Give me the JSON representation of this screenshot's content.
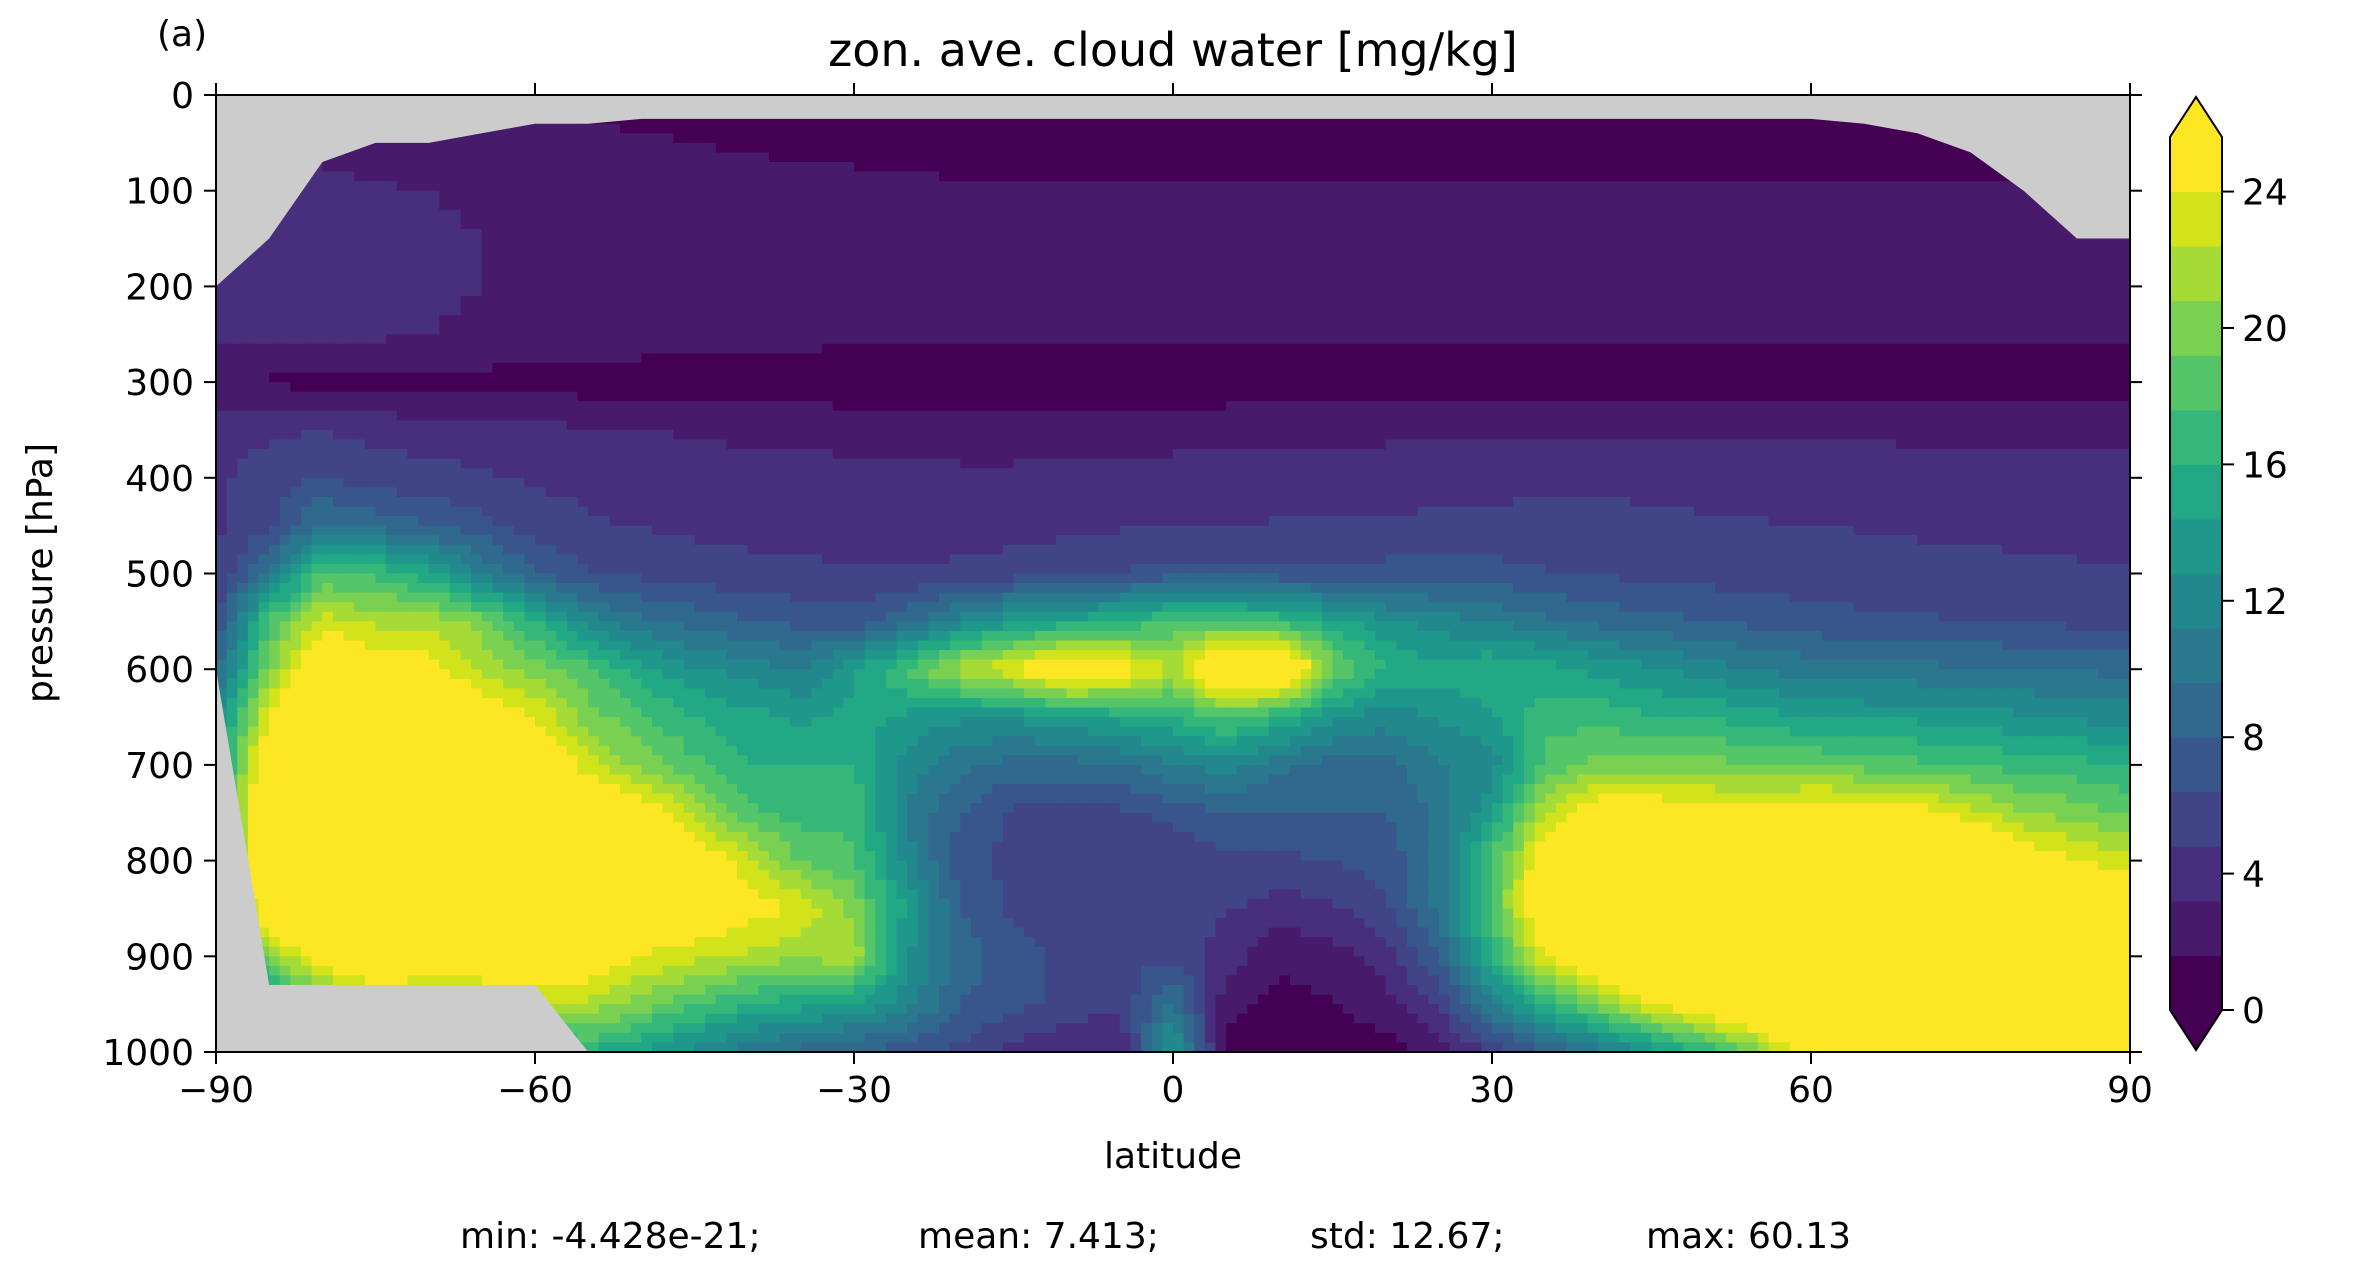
{
  "panel_label": "(a)",
  "stats_line": {
    "min": "min: -4.428e-21;",
    "mean": "mean: 7.413;",
    "std": "std: 12.67;",
    "max": "max: 60.13"
  },
  "colors": {
    "missing": "#cccccc",
    "levels": [
      "#440154",
      "#481a6c",
      "#472f7d",
      "#414487",
      "#39568c",
      "#31688e",
      "#2a788e",
      "#23888e",
      "#1f988b",
      "#22a884",
      "#35b779",
      "#54c568",
      "#7ad151",
      "#a5db36",
      "#d2e21b",
      "#fde725"
    ],
    "under": "#440154",
    "over": "#fde725"
  },
  "chart_data": {
    "type": "heatmap",
    "subtype": "filled-contour",
    "title": "zon. ave. cloud water [mg/kg]",
    "xlabel": "latitude",
    "ylabel": "pressure [hPa]",
    "xlim": [
      -90,
      90
    ],
    "ylim": [
      1000,
      0
    ],
    "y_inverted": true,
    "xticks": [
      -90,
      -60,
      -30,
      0,
      30,
      60,
      90
    ],
    "xtick_labels": [
      "−90",
      "−60",
      "−30",
      "0",
      "30",
      "60",
      "90"
    ],
    "yticks": [
      0,
      100,
      200,
      300,
      400,
      500,
      600,
      700,
      800,
      900,
      1000
    ],
    "ytick_labels": [
      "0",
      "100",
      "200",
      "300",
      "400",
      "500",
      "600",
      "700",
      "800",
      "900",
      "1000"
    ],
    "colorbar": {
      "levels": [
        0,
        1.6,
        3.2,
        4.8,
        6.4,
        8,
        9.6,
        11.2,
        12.8,
        14.4,
        16,
        17.6,
        19.2,
        20.8,
        22.4,
        24,
        25.6
      ],
      "ticks": [
        0,
        4,
        8,
        12,
        16,
        20,
        24
      ],
      "tick_labels": [
        "0",
        "4",
        "8",
        "12",
        "16",
        "20",
        "24"
      ],
      "extend": "both",
      "placement": "right"
    },
    "grid": false,
    "legend": "none",
    "fields": {
      "lat": [
        -90,
        -85,
        -80,
        -75,
        -70,
        -65,
        -60,
        -55,
        -50,
        -45,
        -40,
        -35,
        -30,
        -25,
        -20,
        -15,
        -10,
        -5,
        0,
        5,
        10,
        15,
        20,
        25,
        30,
        35,
        40,
        45,
        50,
        55,
        60,
        65,
        70,
        75,
        80,
        85,
        90
      ],
      "pressure_hPa": [
        0,
        50,
        100,
        150,
        200,
        250,
        300,
        350,
        400,
        450,
        500,
        550,
        600,
        650,
        700,
        750,
        800,
        850,
        900,
        950,
        1000
      ],
      "surface_pressure_hPa": [
        600,
        930,
        930,
        930,
        930,
        930,
        930,
        1000,
        1000,
        1000,
        1000,
        1000,
        1000,
        1000,
        1000,
        1000,
        1000,
        1000,
        1000,
        1000,
        1000,
        1000,
        1000,
        1000,
        1000,
        1000,
        1000,
        1000,
        1000,
        1000,
        1000,
        1000,
        1000,
        1000,
        1000,
        1000,
        1000
      ],
      "model_top_hPa": [
        200,
        150,
        70,
        50,
        50,
        40,
        30,
        30,
        25,
        25,
        25,
        25,
        25,
        25,
        25,
        25,
        25,
        25,
        25,
        25,
        25,
        25,
        25,
        25,
        25,
        25,
        25,
        25,
        25,
        25,
        25,
        30,
        40,
        60,
        100,
        150,
        150
      ],
      "cloud_water_mg_per_kg": [
        [
          2.2,
          3.5,
          3.7,
          3.8,
          3.8,
          3.6,
          2.1,
          4.0,
          4.5,
          4.5,
          5.0,
          6.0,
          9.0,
          12.0,
          13.0,
          13.0,
          13.0,
          12.0,
          8.0,
          3.0,
          1.0
        ],
        [
          2.2,
          3.2,
          3.4,
          3.6,
          3.7,
          3.7,
          1.3,
          4.5,
          5.6,
          6.0,
          10.0,
          18.0,
          20.0,
          24.0,
          28.0,
          30.0,
          30.0,
          29.0,
          20.0,
          14.0,
          2.0
        ],
        [
          2.0,
          3.0,
          3.4,
          3.5,
          3.6,
          3.6,
          1.2,
          4.8,
          6.5,
          10.0,
          18.0,
          23.0,
          28.0,
          32.0,
          33.0,
          33.0,
          32.0,
          30.0,
          26.0,
          18.0,
          3.0
        ],
        [
          1.9,
          2.8,
          3.3,
          3.4,
          3.5,
          3.5,
          1.1,
          4.2,
          5.5,
          9.0,
          17.0,
          22.0,
          25.0,
          30.0,
          32.0,
          32.0,
          32.0,
          30.0,
          28.0,
          21.0,
          7.0
        ],
        [
          1.7,
          2.6,
          3.2,
          3.3,
          3.3,
          3.2,
          1.0,
          4.0,
          5.5,
          8.0,
          15.0,
          22.0,
          25.0,
          30.0,
          32.0,
          32.0,
          32.0,
          30.0,
          27.0,
          20.0,
          9.0
        ],
        [
          1.5,
          2.4,
          3.1,
          3.2,
          3.2,
          3.1,
          1.0,
          3.8,
          5.0,
          7.0,
          11.0,
          20.0,
          22.0,
          26.0,
          30.0,
          30.0,
          30.0,
          28.0,
          26.0,
          22.0,
          12.0
        ],
        [
          1.3,
          2.2,
          3.0,
          3.1,
          3.0,
          2.9,
          0.9,
          3.6,
          4.6,
          5.5,
          8.0,
          16.0,
          20.0,
          24.0,
          28.0,
          30.0,
          30.0,
          28.0,
          26.0,
          22.0,
          14.0
        ],
        [
          1.1,
          2.0,
          2.8,
          3.0,
          2.8,
          2.7,
          0.8,
          3.4,
          4.4,
          5.0,
          6.5,
          12.0,
          18.0,
          20.0,
          23.0,
          28.0,
          30.0,
          28.0,
          26.0,
          22.0,
          16.0
        ],
        [
          0.9,
          1.8,
          2.6,
          2.9,
          2.6,
          2.5,
          0.7,
          3.2,
          4.2,
          4.7,
          6.0,
          10.0,
          15.0,
          18.0,
          20.0,
          26.0,
          28.0,
          27.0,
          24.0,
          20.0,
          14.0
        ],
        [
          0.8,
          1.6,
          2.4,
          2.8,
          2.4,
          2.3,
          0.7,
          3.0,
          4.0,
          4.5,
          5.5,
          9.0,
          13.0,
          16.0,
          18.0,
          22.0,
          26.0,
          26.0,
          23.0,
          18.0,
          12.0
        ],
        [
          0.7,
          1.4,
          2.2,
          2.7,
          2.3,
          2.2,
          0.6,
          2.8,
          3.9,
          4.3,
          5.3,
          8.0,
          12.0,
          15.0,
          16.0,
          18.0,
          23.0,
          25.0,
          22.0,
          16.0,
          10.0
        ],
        [
          0.6,
          1.3,
          2.1,
          2.6,
          2.2,
          2.1,
          0.6,
          2.7,
          3.8,
          4.2,
          5.1,
          7.5,
          11.0,
          14.0,
          16.0,
          17.0,
          19.0,
          24.0,
          21.0,
          15.0,
          9.0
        ],
        [
          0.5,
          1.2,
          2.0,
          2.5,
          2.1,
          2.0,
          0.5,
          2.6,
          3.7,
          4.1,
          5.0,
          7.0,
          14.0,
          15.0,
          16.0,
          17.0,
          18.0,
          20.0,
          22.0,
          14.0,
          8.0
        ],
        [
          0.5,
          1.1,
          1.9,
          2.4,
          2.0,
          1.9,
          0.5,
          2.5,
          3.6,
          4.0,
          5.0,
          9.0,
          18.0,
          14.0,
          12.0,
          11.0,
          12.0,
          14.0,
          13.0,
          12.0,
          7.0
        ],
        [
          0.5,
          1.0,
          1.8,
          2.3,
          1.9,
          1.8,
          0.5,
          2.5,
          3.5,
          4.0,
          5.2,
          12.0,
          22.0,
          13.0,
          10.0,
          8.0,
          7.0,
          8.0,
          9.0,
          8.0,
          6.0
        ],
        [
          0.5,
          1.0,
          1.7,
          2.2,
          1.8,
          1.8,
          0.5,
          2.5,
          3.5,
          4.2,
          5.5,
          14.0,
          24.0,
          13.0,
          9.0,
          6.0,
          6.0,
          6.0,
          7.0,
          7.0,
          4.0
        ],
        [
          0.5,
          1.0,
          1.7,
          2.2,
          1.8,
          1.8,
          0.5,
          2.5,
          3.6,
          4.4,
          6.0,
          15.0,
          28.0,
          14.0,
          9.0,
          6.0,
          5.5,
          5.5,
          6.0,
          6.0,
          3.0
        ],
        [
          0.5,
          1.0,
          1.7,
          2.2,
          1.8,
          1.8,
          0.5,
          2.6,
          3.7,
          4.6,
          6.5,
          16.0,
          26.0,
          15.0,
          9.5,
          6.0,
          5.0,
          5.5,
          6.0,
          5.0,
          3.0
        ],
        [
          0.5,
          1.0,
          1.7,
          2.2,
          1.8,
          1.8,
          0.5,
          2.6,
          3.8,
          4.7,
          7.0,
          18.0,
          22.0,
          16.0,
          11.0,
          7.0,
          5.0,
          5.0,
          6.0,
          10.0,
          14.0
        ],
        [
          0.5,
          1.0,
          1.7,
          2.2,
          1.8,
          1.8,
          0.5,
          2.7,
          3.9,
          4.8,
          7.0,
          18.0,
          30.0,
          18.0,
          12.0,
          8.0,
          6.0,
          5.0,
          4.0,
          2.0,
          1.0
        ],
        [
          0.5,
          1.0,
          1.7,
          2.2,
          1.8,
          1.8,
          0.5,
          2.7,
          4.0,
          4.9,
          7.0,
          17.0,
          30.0,
          16.0,
          10.0,
          8.0,
          6.0,
          4.0,
          2.0,
          1.0,
          0.5
        ],
        [
          0.5,
          1.0,
          1.7,
          2.2,
          1.8,
          1.8,
          0.5,
          2.8,
          4.0,
          5.0,
          7.0,
          15.0,
          20.0,
          13.0,
          9.0,
          8.0,
          6.5,
          4.5,
          2.5,
          1.5,
          0.5
        ],
        [
          0.5,
          1.0,
          1.7,
          2.2,
          1.8,
          1.8,
          0.5,
          2.8,
          4.1,
          5.0,
          7.0,
          13.0,
          16.0,
          12.0,
          9.0,
          8.0,
          7.0,
          6.0,
          4.0,
          2.5,
          1.0
        ],
        [
          0.5,
          1.0,
          1.7,
          2.2,
          1.8,
          1.8,
          0.5,
          2.9,
          4.2,
          5.1,
          7.0,
          12.0,
          15.0,
          13.0,
          11.0,
          10.0,
          10.0,
          10.0,
          8.0,
          5.0,
          2.0
        ],
        [
          0.5,
          1.0,
          1.7,
          2.2,
          1.8,
          1.8,
          0.5,
          3.0,
          4.3,
          5.2,
          7.0,
          11.0,
          16.0,
          14.0,
          12.0,
          14.0,
          18.0,
          18.0,
          16.0,
          11.0,
          5.0
        ],
        [
          0.5,
          1.0,
          1.7,
          2.2,
          1.8,
          1.8,
          0.5,
          3.0,
          4.4,
          5.3,
          6.5,
          10.0,
          15.0,
          17.0,
          18.0,
          22.0,
          26.0,
          28.0,
          24.0,
          16.0,
          8.0
        ],
        [
          0.5,
          1.0,
          1.7,
          2.2,
          1.8,
          1.8,
          0.5,
          3.0,
          4.4,
          5.3,
          6.2,
          9.0,
          14.0,
          17.0,
          20.0,
          26.0,
          30.0,
          30.0,
          28.0,
          20.0,
          10.0
        ],
        [
          0.5,
          1.0,
          1.7,
          2.2,
          1.8,
          1.8,
          0.5,
          3.0,
          4.3,
          5.2,
          6.0,
          8.5,
          13.0,
          16.0,
          20.0,
          26.0,
          32.0,
          32.0,
          30.0,
          24.0,
          13.0
        ],
        [
          0.5,
          1.0,
          1.7,
          2.2,
          1.8,
          1.8,
          0.5,
          3.0,
          4.2,
          5.0,
          5.8,
          8.0,
          12.0,
          16.0,
          20.0,
          25.0,
          32.0,
          33.0,
          32.0,
          27.0,
          16.0
        ],
        [
          0.5,
          1.0,
          1.7,
          2.2,
          1.8,
          1.8,
          0.5,
          3.0,
          4.1,
          4.9,
          5.6,
          7.5,
          11.0,
          15.0,
          19.0,
          25.0,
          32.0,
          34.0,
          33.0,
          29.0,
          20.0
        ],
        [
          0.5,
          1.0,
          1.7,
          2.2,
          1.8,
          1.8,
          0.5,
          3.0,
          4.0,
          4.8,
          5.5,
          7.0,
          10.5,
          14.5,
          19.0,
          26.0,
          33.0,
          35.0,
          34.0,
          30.0,
          26.0
        ],
        [
          0.5,
          1.0,
          1.7,
          2.2,
          1.8,
          1.8,
          0.5,
          3.0,
          3.9,
          4.7,
          5.4,
          6.8,
          10.0,
          14.0,
          18.5,
          26.0,
          33.0,
          35.0,
          35.0,
          31.0,
          28.0
        ],
        [
          0.5,
          1.0,
          1.7,
          2.2,
          1.8,
          1.8,
          0.5,
          2.9,
          3.8,
          4.6,
          5.3,
          6.6,
          10.0,
          14.0,
          18.0,
          25.0,
          32.0,
          34.0,
          34.0,
          31.0,
          28.0
        ],
        [
          0.5,
          1.0,
          1.7,
          2.2,
          1.8,
          1.8,
          0.5,
          2.9,
          3.7,
          4.5,
          5.2,
          6.4,
          9.8,
          13.5,
          17.5,
          23.0,
          30.0,
          33.0,
          33.0,
          30.0,
          27.0
        ],
        [
          0.5,
          1.0,
          1.7,
          2.2,
          1.8,
          1.8,
          0.5,
          2.9,
          3.7,
          4.4,
          5.1,
          6.2,
          9.6,
          13.0,
          17.0,
          21.0,
          26.0,
          30.0,
          31.0,
          29.0,
          26.0
        ],
        [
          0.5,
          1.0,
          1.7,
          2.2,
          1.8,
          1.8,
          0.5,
          2.8,
          3.6,
          4.3,
          5.0,
          6.0,
          9.4,
          12.5,
          16.5,
          20.0,
          24.0,
          28.0,
          30.0,
          28.0,
          26.0
        ],
        [
          0.5,
          1.0,
          1.7,
          2.2,
          1.8,
          1.8,
          0.5,
          2.8,
          3.6,
          4.2,
          5.0,
          6.0,
          9.2,
          12.0,
          16.0,
          19.0,
          23.0,
          27.0,
          29.0,
          27.0,
          25.0
        ]
      ]
    }
  }
}
